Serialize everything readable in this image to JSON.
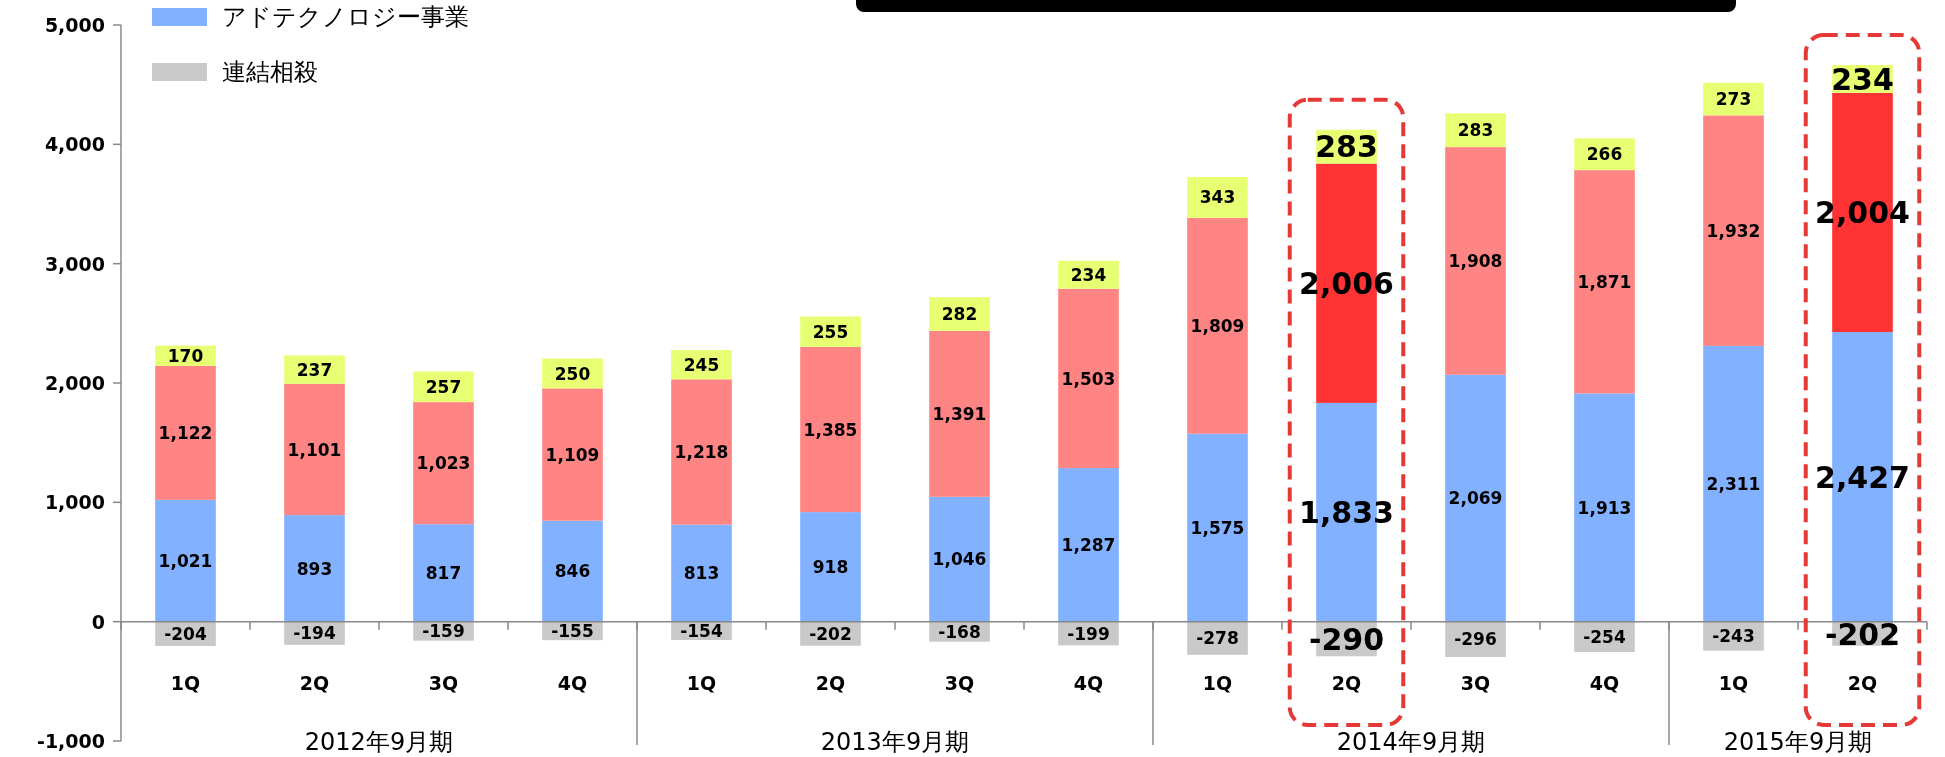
{
  "chart_data": {
    "type": "bar",
    "stacked": true,
    "legend": "top left",
    "categories": [
      "1Q",
      "2Q",
      "3Q",
      "4Q",
      "1Q",
      "2Q",
      "3Q",
      "4Q",
      "1Q",
      "2Q",
      "3Q",
      "4Q",
      "1Q",
      "2Q"
    ],
    "annotations": [
      "2012年9月期",
      "2013年9月期",
      "2014年9月期",
      "2015年9月期"
    ],
    "ylim": [
      -1000,
      5000
    ],
    "yticks": [
      {
        "value": -1000,
        "label": "-1,000"
      },
      0,
      {
        "value": 1000,
        "label": "1,000"
      },
      {
        "value": 2000,
        "label": "2,000"
      },
      {
        "value": 3000,
        "label": "3,000"
      },
      {
        "value": 4000,
        "label": "4,000"
      },
      {
        "value": 5000,
        "label": "5,000"
      }
    ],
    "series": [
      {
        "name": "アドテクノロジー事業",
        "color": "#82b1ff",
        "values": [
          1021,
          893,
          817,
          846,
          813,
          918,
          1046,
          1287,
          1575,
          1833,
          2069,
          1913,
          2311,
          2427
        ],
        "value_labels": [
          "1,021",
          "893",
          "817",
          "846",
          "813",
          "918",
          "1,046",
          "1,287",
          "1,575",
          "1,833",
          "2,069",
          "1,913",
          "2,311",
          "2,427"
        ]
      },
      {
        "color": "#ff8585",
        "colors": [
          "#ff8585",
          "#ff8585",
          "#ff8585",
          "#ff8585",
          "#ff8585",
          "#ff8585",
          "#ff8585",
          "#ff8585",
          "#ff8585",
          "#ff3333",
          "#ff8585",
          "#ff8585",
          "#ff8585",
          "#ff3333"
        ],
        "values": [
          1122,
          1101,
          1023,
          1109,
          1218,
          1385,
          1391,
          1503,
          1809,
          2006,
          1908,
          1871,
          1932,
          2004
        ],
        "value_labels": [
          "1,122",
          "1,101",
          "1,023",
          "1,109",
          "1,218",
          "1,385",
          "1,391",
          "1,503",
          "1,809",
          "2,006",
          "1,908",
          "1,871",
          "1,932",
          "2,004"
        ]
      },
      {
        "color": "#e6ff73",
        "values": [
          170,
          237,
          257,
          250,
          245,
          255,
          282,
          234,
          343,
          283,
          283,
          266,
          273,
          234
        ],
        "value_labels": [
          "170",
          "237",
          "257",
          "250",
          "245",
          "255",
          "282",
          "234",
          "343",
          "283",
          "283",
          "266",
          "273",
          "234"
        ]
      },
      {
        "name": "連結相殺",
        "color": "#c9c9c9",
        "values": [
          -204,
          -194,
          -159,
          -155,
          -154,
          -202,
          -168,
          -199,
          -278,
          -290,
          -296,
          -254,
          -243,
          -202
        ],
        "value_labels": [
          "-204",
          "-194",
          "-159",
          "-155",
          "-154",
          "-202",
          "-168",
          "-199",
          "-278",
          "-290",
          "-296",
          "-254",
          "-243",
          "-202"
        ]
      }
    ]
  }
}
